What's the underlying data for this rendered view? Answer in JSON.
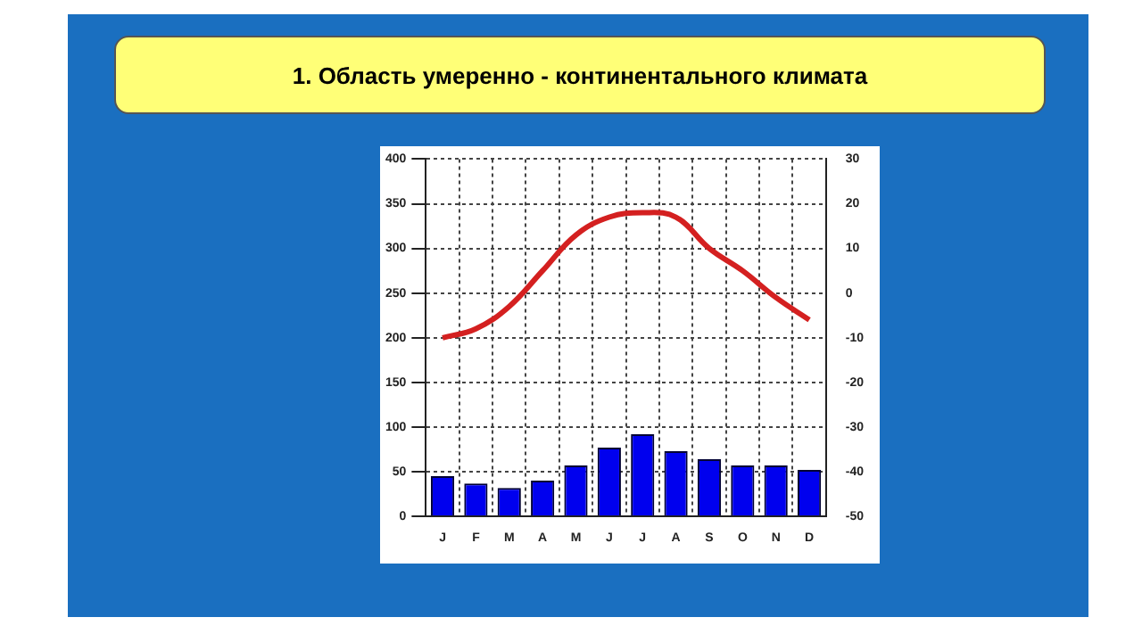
{
  "chart_data": {
    "type": "bar",
    "title": "1. Область умеренно - континентального климата",
    "categories": [
      "J",
      "F",
      "M",
      "A",
      "M",
      "J",
      "J",
      "A",
      "S",
      "O",
      "N",
      "D"
    ],
    "series": [
      {
        "color": "#0000ee",
        "values": [
          45,
          37,
          32,
          40,
          57,
          77,
          92,
          73,
          64,
          57,
          57,
          52
        ]
      },
      {
        "type": "line",
        "axis": "y2",
        "color": "#d42020",
        "values": [
          -10,
          -8,
          -3,
          5,
          13,
          17,
          18,
          17,
          10,
          5,
          -1,
          -6
        ]
      }
    ],
    "ylim": [
      0,
      400
    ],
    "yticks": [
      0,
      50,
      100,
      150,
      200,
      250,
      300,
      350,
      400
    ],
    "y2lim": [
      -50,
      30
    ],
    "y2ticks": [
      -50,
      -40,
      -30,
      -20,
      -10,
      0,
      10,
      20,
      30
    ],
    "grid": true,
    "marker": "none",
    "line_style": "solid"
  }
}
